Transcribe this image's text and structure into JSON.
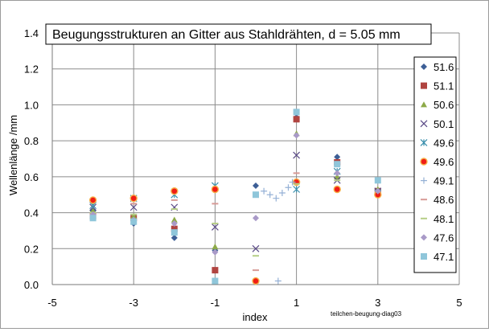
{
  "chart_data": {
    "type": "scatter",
    "title": "Beugungsstrukturen an Gitter aus Stahldrähten,  d =  5.05 mm",
    "xlabel": "index",
    "ylabel": "Wellenlänge /mm",
    "watermark": "teilchen-beugung-diag03",
    "xlim": [
      -5,
      5
    ],
    "ylim": [
      0,
      1.4
    ],
    "xticks": [
      -5,
      -3,
      -1,
      1,
      3,
      5
    ],
    "xtick_labels": [
      "-5",
      "-3",
      "-1",
      "1",
      "3",
      "5"
    ],
    "yticks": [
      0,
      0.2,
      0.4,
      0.6,
      0.8,
      1.0,
      1.2,
      1.4
    ],
    "ytick_labels": [
      "0.0",
      "0.2",
      "0.4",
      "0.6",
      "0.8",
      "1.0",
      "1.2",
      "1.4"
    ],
    "grid": true,
    "legend_position": "right",
    "series": [
      {
        "name": "51.6",
        "marker": "diamond",
        "color": "#3d5f96",
        "x": [
          -4,
          -3,
          -2,
          -1,
          0,
          1,
          2,
          3
        ],
        "y": [
          0.41,
          0.34,
          0.26,
          0.19,
          0.55,
          0.93,
          0.71,
          0.52
        ]
      },
      {
        "name": "51.1",
        "marker": "square",
        "color": "#b04440",
        "x": [
          -4,
          -3,
          -2,
          -1,
          1,
          2,
          3
        ],
        "y": [
          0.38,
          0.37,
          0.31,
          0.08,
          0.92,
          0.68,
          0.52
        ]
      },
      {
        "name": "50.6",
        "marker": "triangle",
        "color": "#8daa48",
        "x": [
          -4,
          -3,
          -2,
          -1,
          1,
          2,
          3
        ],
        "y": [
          0.41,
          0.38,
          0.36,
          0.21,
          0.84,
          0.6,
          0.53
        ]
      },
      {
        "name": "50.1",
        "marker": "x",
        "color": "#5a4a86",
        "x": [
          -4,
          -3,
          -2,
          -1,
          0,
          1,
          2,
          3
        ],
        "y": [
          0.43,
          0.43,
          0.43,
          0.32,
          0.2,
          0.72,
          0.58,
          0.52
        ]
      },
      {
        "name": "49.6",
        "marker": "star",
        "color": "#3a8fac",
        "x": [
          -4,
          -3,
          -2,
          -1,
          1,
          2,
          3
        ],
        "y": [
          0.44,
          0.48,
          0.5,
          0.55,
          0.53,
          0.63,
          0.51
        ]
      },
      {
        "name": "49.6",
        "marker": "circle",
        "color": "#f01d16",
        "x": [
          -4,
          -3,
          -2,
          -1,
          0,
          1,
          2,
          3
        ],
        "y": [
          0.47,
          0.48,
          0.52,
          0.53,
          0.02,
          0.57,
          0.53,
          0.5
        ]
      },
      {
        "name": "49.1",
        "marker": "plus",
        "color": "#95b1d6",
        "x": [
          0.2,
          0.35,
          0.5,
          0.65,
          0.8,
          0.9,
          0.55
        ],
        "y": [
          0.52,
          0.5,
          0.48,
          0.51,
          0.54,
          0.57,
          0.02
        ]
      },
      {
        "name": "48.6",
        "marker": "dash",
        "color": "#d79a96",
        "x": [
          -4,
          -3,
          -2,
          -1,
          0,
          1,
          2
        ],
        "y": [
          0.39,
          0.45,
          0.47,
          0.45,
          0.08,
          0.62,
          0.67
        ]
      },
      {
        "name": "48.1",
        "marker": "dash",
        "color": "#b6ce86",
        "x": [
          -4,
          -3,
          -2,
          -1,
          0,
          1,
          2
        ],
        "y": [
          0.4,
          0.39,
          0.42,
          0.34,
          0.16,
          0.56,
          0.58
        ]
      },
      {
        "name": "47.6",
        "marker": "diamond",
        "color": "#a99ac8",
        "x": [
          -4,
          -3,
          -2,
          -1,
          0,
          1,
          2,
          3
        ],
        "y": [
          0.39,
          0.36,
          0.34,
          0.18,
          0.37,
          0.83,
          0.62,
          0.52
        ]
      },
      {
        "name": "47.1",
        "marker": "square",
        "color": "#8fc6da",
        "x": [
          -4,
          -3,
          -2,
          -1,
          0,
          1,
          2,
          3
        ],
        "y": [
          0.37,
          0.35,
          0.29,
          0.02,
          0.5,
          0.96,
          0.67,
          0.58
        ]
      }
    ]
  }
}
